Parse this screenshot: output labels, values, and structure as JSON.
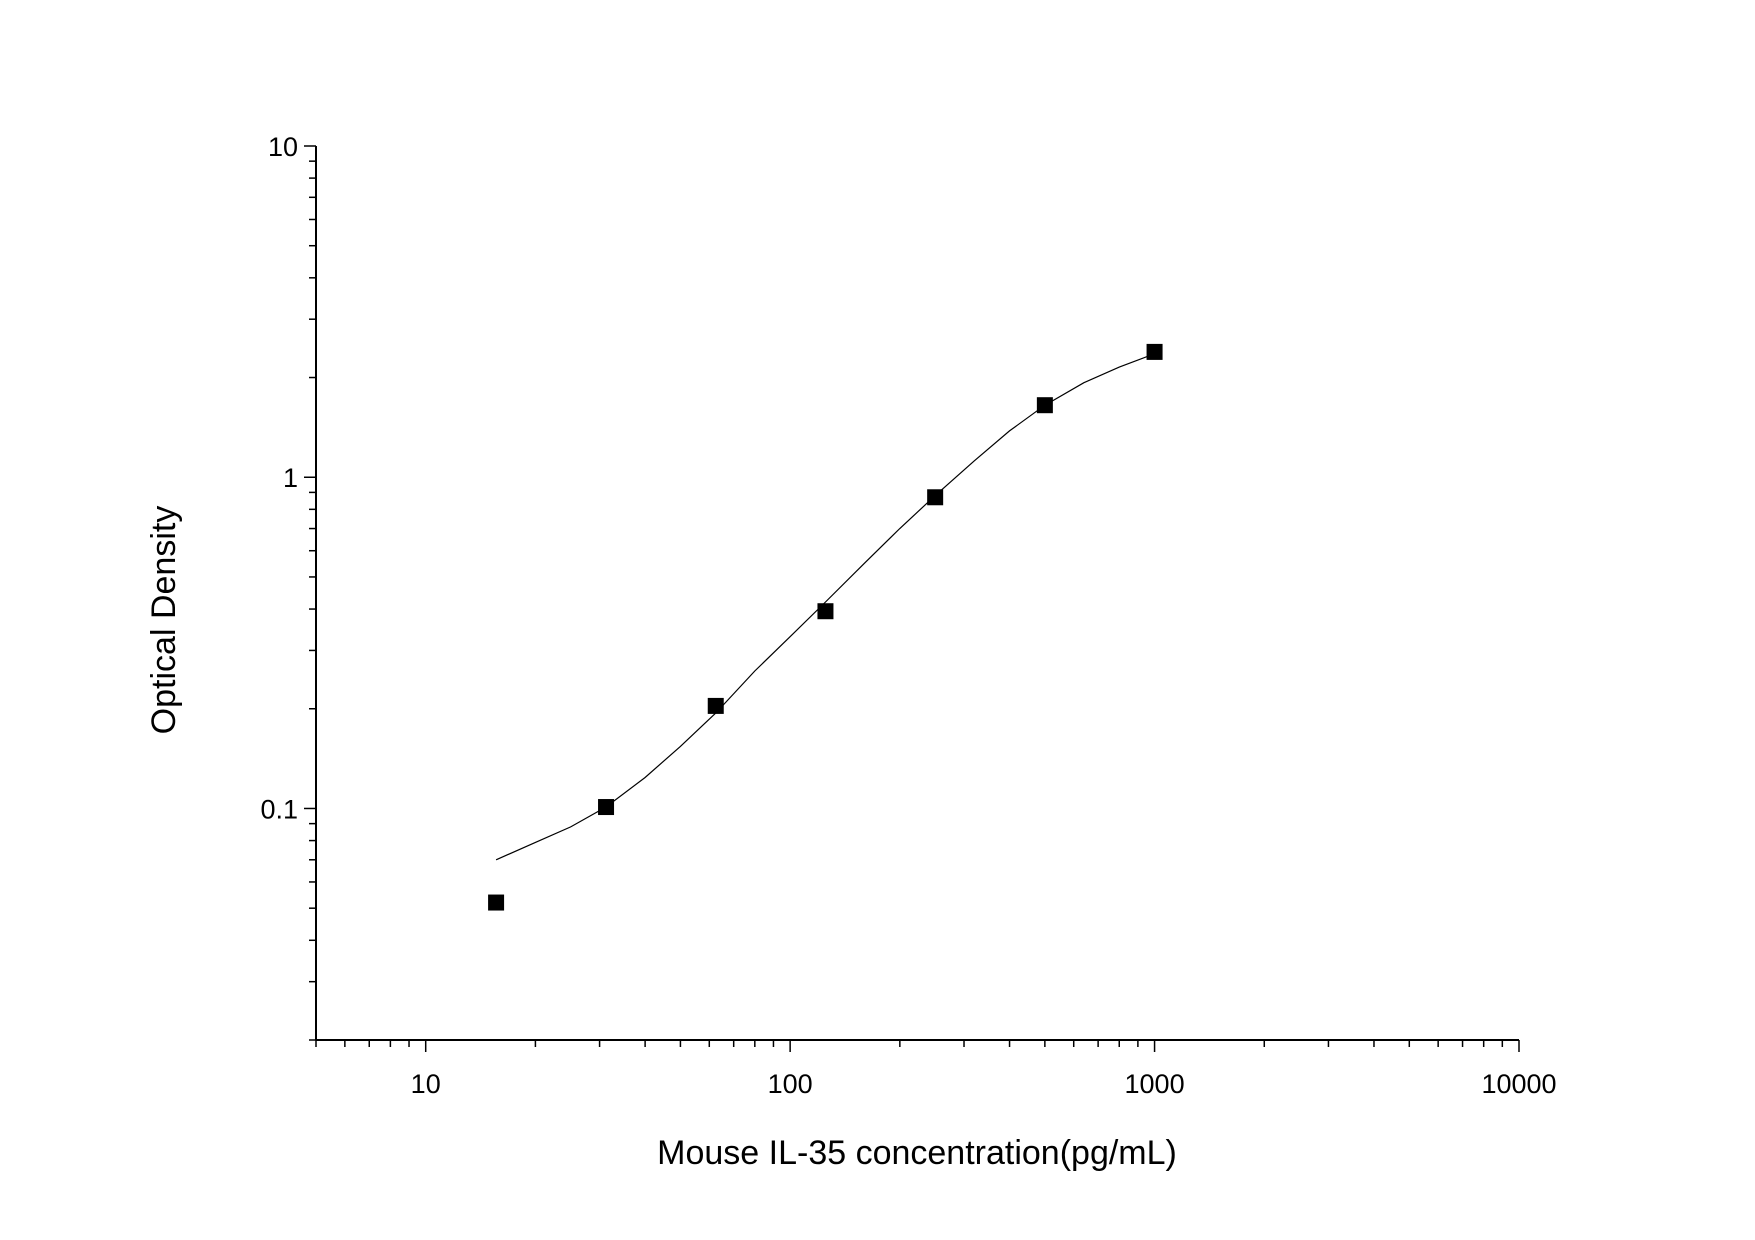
{
  "chart_data": {
    "type": "scatter",
    "title": "",
    "xlabel": "Mouse IL-35 concentration(pg/mL)",
    "ylabel": "Optical Density",
    "xscale": "log",
    "yscale": "log",
    "xlim": [
      5,
      10000
    ],
    "ylim": [
      0.02,
      10
    ],
    "xticks": [
      {
        "v": 10,
        "label": "10"
      },
      {
        "v": 100,
        "label": "100"
      },
      {
        "v": 1000,
        "label": "1000"
      },
      {
        "v": 10000,
        "label": "10000"
      }
    ],
    "yticks": [
      {
        "v": 0.1,
        "label": "0.1"
      },
      {
        "v": 1,
        "label": "1"
      },
      {
        "v": 10,
        "label": "10"
      }
    ],
    "grid": false,
    "legend": "none",
    "marker": "square",
    "color": "#000000",
    "points": [
      {
        "x": 15.6,
        "y": 0.052
      },
      {
        "x": 31.25,
        "y": 0.101
      },
      {
        "x": 62.5,
        "y": 0.204
      },
      {
        "x": 125,
        "y": 0.394
      },
      {
        "x": 250,
        "y": 0.87
      },
      {
        "x": 500,
        "y": 1.65
      },
      {
        "x": 1000,
        "y": 2.39
      }
    ],
    "fit_curve": {
      "x": [
        15.6,
        20,
        25,
        31.25,
        40,
        50,
        62.5,
        80,
        100,
        125,
        160,
        200,
        250,
        320,
        400,
        500,
        640,
        800,
        1000
      ],
      "y": [
        0.07,
        0.079,
        0.088,
        0.101,
        0.124,
        0.154,
        0.194,
        0.26,
        0.33,
        0.42,
        0.55,
        0.7,
        0.88,
        1.12,
        1.38,
        1.65,
        1.93,
        2.15,
        2.36
      ]
    }
  }
}
